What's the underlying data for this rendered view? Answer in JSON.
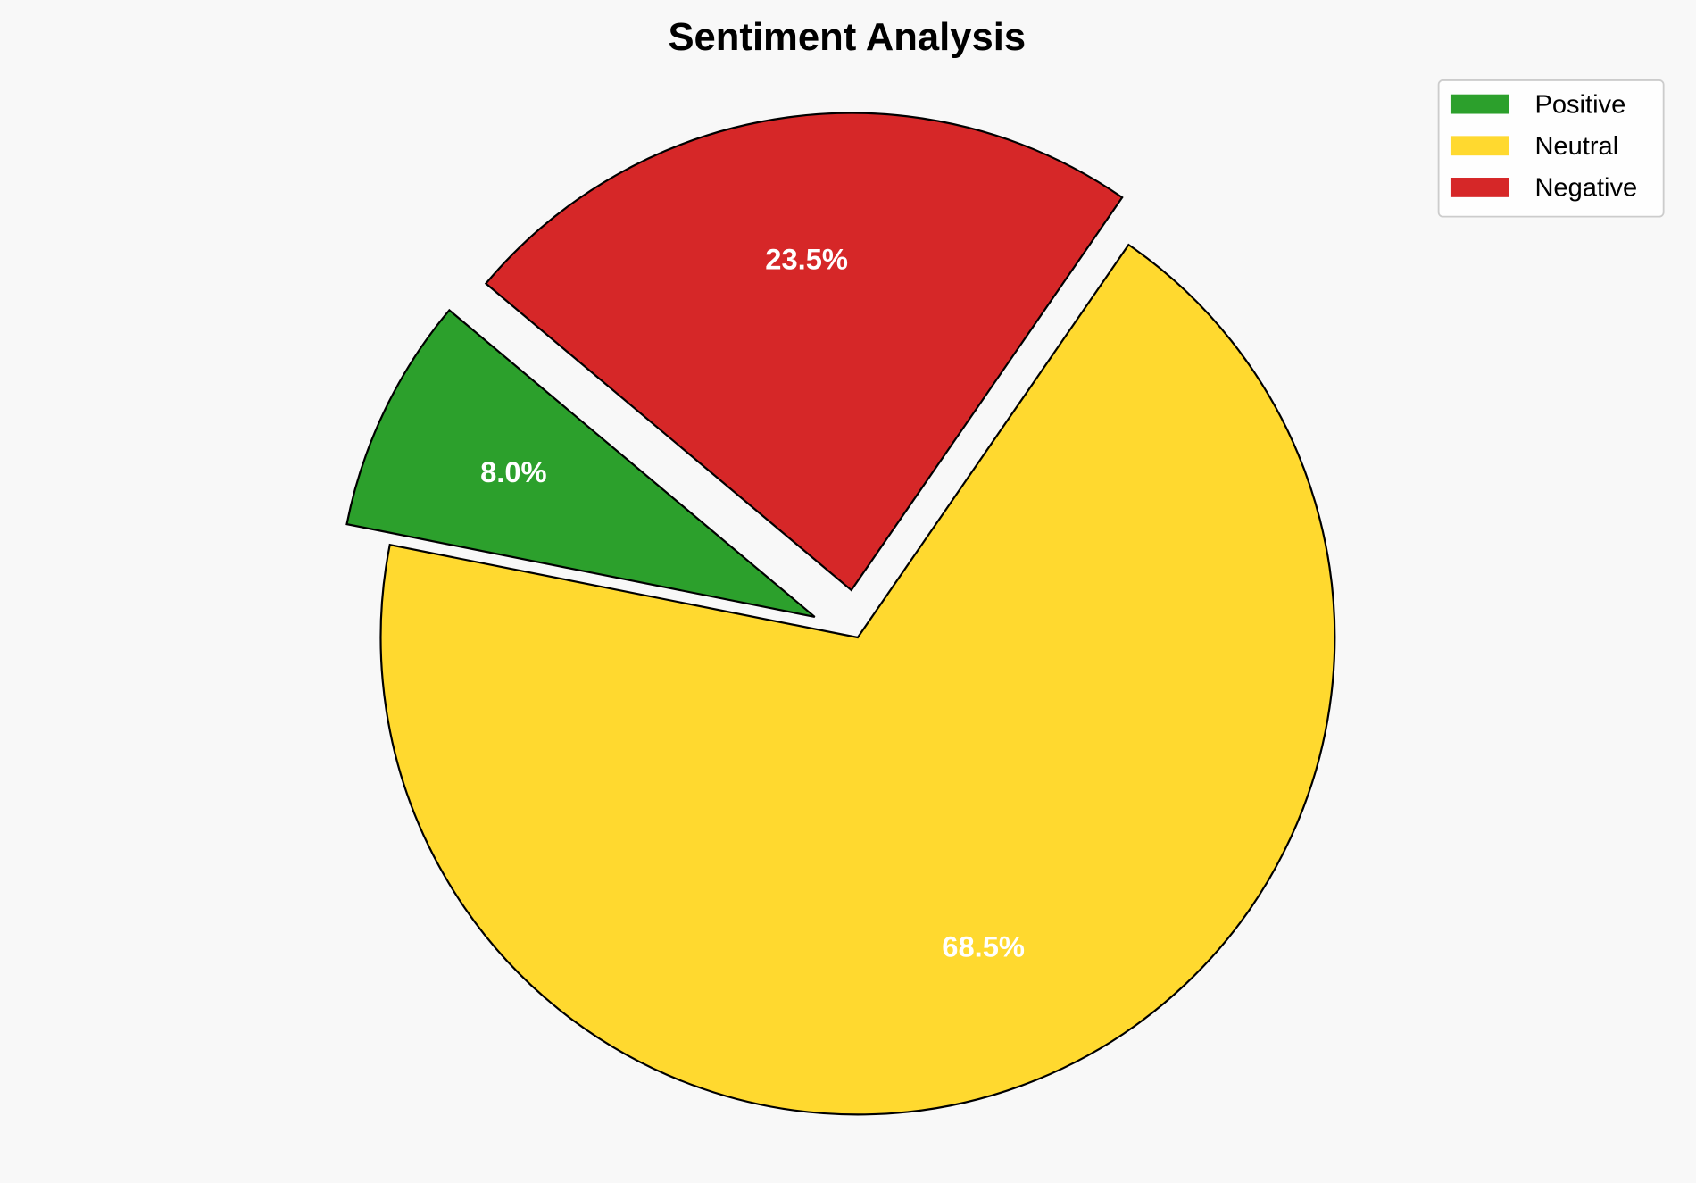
{
  "chart_data": {
    "type": "pie",
    "title": "Sentiment Analysis",
    "categories": [
      "Positive",
      "Neutral",
      "Negative"
    ],
    "values": [
      8.0,
      68.5,
      23.5
    ],
    "labels": [
      "8.0%",
      "68.5%",
      "23.5%"
    ],
    "colors": [
      "#2ca02c",
      "#ffd92f",
      "#d62728"
    ],
    "explode": [
      0.1,
      0,
      0.1
    ],
    "start_angle": 140,
    "direction": "counterclockwise",
    "edge_color": "#000000",
    "label_color": "#ffffff",
    "legend_position": "top-right",
    "background": "#f8f8f8"
  }
}
